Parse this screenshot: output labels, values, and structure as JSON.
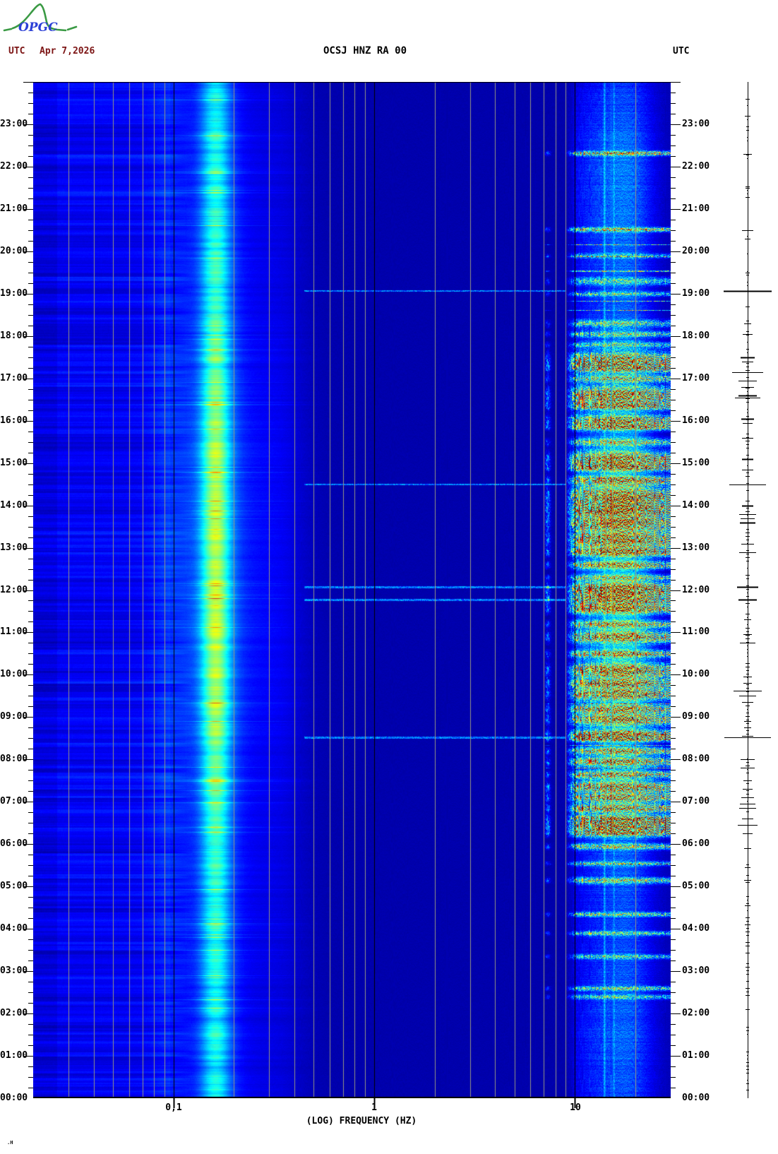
{
  "header": {
    "logo_text": "OPGC",
    "utc_left": "UTC",
    "date": "Apr 7,2026",
    "title": "OCSJ HNZ RA 00",
    "utc_right": "UTC"
  },
  "corner_mark": ".H",
  "colors": {
    "background": "#ffffff",
    "header_date": "#7c1414",
    "title_text": "#000000",
    "grid_minor": "#969684",
    "grid_major": "#000000",
    "trace": "#000000",
    "colormap": "jet",
    "spectro_background": "#0000a4",
    "logo_green": "#3a9a44",
    "logo_blue": "#2b3fd6"
  },
  "chart_data": {
    "type": "heatmap",
    "title": "OCSJ HNZ RA 00",
    "subtitle_date": "Apr 7,2026",
    "timezone": "UTC",
    "xlabel": "(LOG) FREQUENCY (HZ)",
    "x_scale": "log",
    "freq_range_hz": [
      0.02,
      30
    ],
    "x_ticks": [
      {
        "label": "0,1",
        "value": 0.1
      },
      {
        "label": "1",
        "value": 1
      },
      {
        "label": "10",
        "value": 10
      }
    ],
    "grid_minor_hz": [
      0.03,
      0.04,
      0.05,
      0.06,
      0.07,
      0.08,
      0.09,
      0.2,
      0.3,
      0.4,
      0.5,
      0.6,
      0.7,
      0.8,
      0.9,
      2,
      3,
      4,
      5,
      6,
      7,
      8,
      9,
      20
    ],
    "time_range": [
      "00:00",
      "24:00"
    ],
    "minutes_per_pixel": 1.0,
    "hour_labels": [
      "23:00",
      "22:00",
      "21:00",
      "20:00",
      "19:00",
      "18:00",
      "17:00",
      "16:00",
      "15:00",
      "14:00",
      "13:00",
      "12:00",
      "11:00",
      "10:00",
      "09:00",
      "08:00",
      "07:00",
      "06:00",
      "05:00",
      "04:00",
      "03:00",
      "02:00",
      "01:00",
      "00:00"
    ],
    "tick_interval_min": 15,
    "seed": 42,
    "microseism_band": {
      "center_hz": 0.16,
      "pedestal_hz": [
        0.1,
        0.3
      ],
      "intensity": "cyan at night, yellow-orange 08:00-18:00, sporadic red rows"
    },
    "persistent_lines_hz": [
      14.0,
      15.6
    ],
    "tremor_column_hz": 7.3,
    "hf_bursts": [
      [
        22.32,
        0.85,
        3
      ],
      [
        20.52,
        0.8,
        3
      ],
      [
        19.9,
        0.4,
        3
      ],
      [
        19.3,
        0.45,
        5
      ],
      [
        19.0,
        0.5,
        3
      ],
      [
        18.3,
        0.5,
        5
      ],
      [
        18.05,
        0.55,
        4
      ],
      [
        17.8,
        0.5,
        4
      ],
      [
        17.45,
        0.9,
        10
      ],
      [
        17.25,
        0.85,
        6
      ],
      [
        17.0,
        0.7,
        5
      ],
      [
        16.6,
        0.95,
        12
      ],
      [
        16.35,
        0.8,
        5
      ],
      [
        16.0,
        0.85,
        8
      ],
      [
        15.85,
        0.7,
        4
      ],
      [
        15.5,
        0.6,
        5
      ],
      [
        15.1,
        0.9,
        10
      ],
      [
        14.9,
        0.8,
        5
      ],
      [
        14.6,
        0.85,
        6
      ],
      [
        14.2,
        0.95,
        14
      ],
      [
        13.9,
        0.9,
        8
      ],
      [
        13.6,
        0.95,
        10
      ],
      [
        13.2,
        0.9,
        12
      ],
      [
        12.9,
        0.85,
        6
      ],
      [
        12.6,
        0.8,
        5
      ],
      [
        12.3,
        0.6,
        4
      ],
      [
        12.05,
        0.95,
        8
      ],
      [
        11.8,
        0.9,
        10
      ],
      [
        11.55,
        0.85,
        6
      ],
      [
        11.2,
        0.7,
        5
      ],
      [
        10.9,
        0.85,
        8
      ],
      [
        10.5,
        0.8,
        5
      ],
      [
        10.1,
        0.9,
        10
      ],
      [
        9.8,
        0.85,
        6
      ],
      [
        9.55,
        0.9,
        8
      ],
      [
        9.2,
        0.8,
        6
      ],
      [
        8.95,
        0.85,
        8
      ],
      [
        8.6,
        0.95,
        6
      ],
      [
        8.5,
        0.9,
        4
      ],
      [
        8.2,
        0.8,
        5
      ],
      [
        7.95,
        0.85,
        6
      ],
      [
        7.65,
        0.8,
        5
      ],
      [
        7.35,
        0.9,
        8
      ],
      [
        7.1,
        0.85,
        6
      ],
      [
        6.85,
        0.9,
        6
      ],
      [
        6.6,
        0.85,
        5
      ],
      [
        6.45,
        0.95,
        10
      ],
      [
        6.3,
        0.9,
        6
      ],
      [
        5.95,
        0.7,
        4
      ],
      [
        5.55,
        0.5,
        3
      ],
      [
        5.15,
        0.65,
        4
      ],
      [
        4.35,
        0.6,
        3
      ],
      [
        3.9,
        0.55,
        3
      ],
      [
        3.35,
        0.5,
        3
      ],
      [
        2.6,
        0.6,
        3
      ],
      [
        2.4,
        0.5,
        3
      ]
    ],
    "quake_lines_hours": [
      19.07,
      14.5,
      12.08,
      11.78,
      8.52
    ],
    "trace_spikes": [
      [
        19.07,
        34,
        2
      ],
      [
        17.15,
        22,
        1
      ],
      [
        16.6,
        13,
        2
      ],
      [
        16.55,
        18,
        1
      ],
      [
        14.5,
        26,
        1
      ],
      [
        12.08,
        15,
        2
      ],
      [
        11.78,
        13,
        2
      ],
      [
        9.62,
        20,
        1
      ],
      [
        8.52,
        33,
        1
      ],
      [
        6.45,
        14,
        1
      ],
      [
        23.6,
        3,
        1
      ],
      [
        23.2,
        4,
        1
      ],
      [
        22.3,
        6,
        1
      ],
      [
        21.5,
        3,
        1
      ],
      [
        20.5,
        8,
        1
      ],
      [
        20.3,
        4,
        1
      ],
      [
        19.5,
        3,
        1
      ],
      [
        18.7,
        3,
        1
      ],
      [
        18.3,
        5,
        1
      ],
      [
        18.05,
        7,
        1
      ],
      [
        17.5,
        10,
        2
      ],
      [
        17.4,
        8,
        1
      ],
      [
        16.95,
        13,
        1
      ],
      [
        16.8,
        9,
        1
      ],
      [
        16.05,
        9,
        2
      ],
      [
        15.95,
        7,
        1
      ],
      [
        15.6,
        8,
        1
      ],
      [
        15.1,
        8,
        2
      ],
      [
        14.85,
        8,
        1
      ],
      [
        14.0,
        8,
        2
      ],
      [
        13.8,
        12,
        1
      ],
      [
        13.7,
        10,
        1
      ],
      [
        13.6,
        11,
        2
      ],
      [
        13.1,
        9,
        1
      ],
      [
        12.9,
        12,
        1
      ],
      [
        11.3,
        5,
        1
      ],
      [
        10.95,
        6,
        1
      ],
      [
        10.75,
        11,
        1
      ],
      [
        9.95,
        6,
        1
      ],
      [
        9.8,
        6,
        1
      ],
      [
        9.5,
        12,
        1
      ],
      [
        9.35,
        8,
        1
      ],
      [
        8.9,
        5,
        1
      ],
      [
        8.75,
        5,
        1
      ],
      [
        8.55,
        8,
        1
      ],
      [
        8.0,
        10,
        1
      ],
      [
        7.8,
        10,
        1
      ],
      [
        7.5,
        6,
        1
      ],
      [
        7.3,
        7,
        1
      ],
      [
        7.1,
        9,
        1
      ],
      [
        6.95,
        11,
        1
      ],
      [
        6.85,
        12,
        1
      ],
      [
        6.6,
        8,
        1
      ],
      [
        6.25,
        7,
        1
      ],
      [
        5.9,
        5,
        1
      ],
      [
        5.45,
        4,
        1
      ],
      [
        5.15,
        5,
        1
      ],
      [
        4.55,
        4,
        1
      ],
      [
        4.1,
        4,
        1
      ],
      [
        3.6,
        3,
        1
      ],
      [
        3.1,
        3,
        1
      ],
      [
        2.6,
        3,
        1
      ],
      [
        2.1,
        3,
        1
      ],
      [
        1.6,
        2,
        1
      ],
      [
        1.1,
        2,
        1
      ],
      [
        0.6,
        2,
        1
      ],
      [
        0.2,
        2,
        1
      ]
    ]
  }
}
